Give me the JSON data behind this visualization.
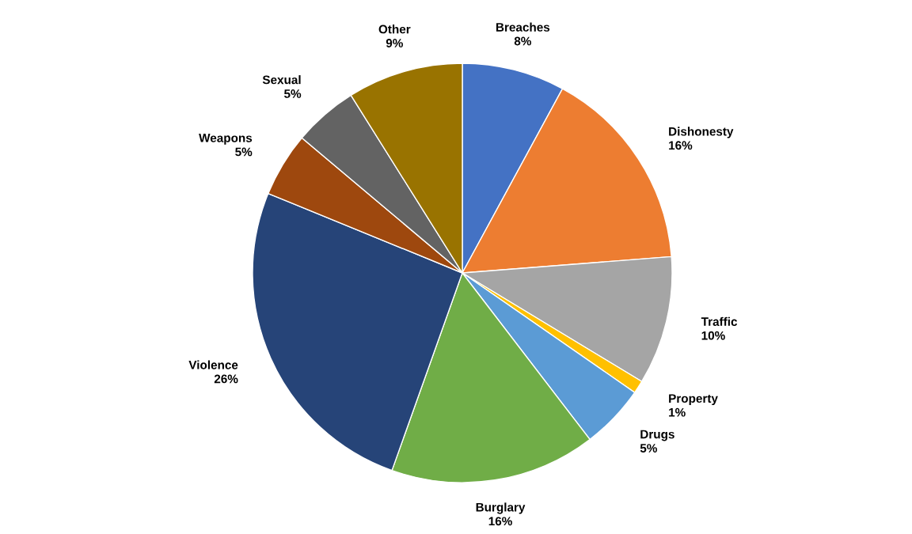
{
  "chart_data": {
    "type": "pie",
    "categories": [
      "Breaches",
      "Dishonesty",
      "Traffic",
      "Property",
      "Drugs",
      "Burglary",
      "Violence",
      "Weapons",
      "Sexual",
      "Other"
    ],
    "values": [
      8,
      16,
      10,
      1,
      5,
      16,
      26,
      5,
      5,
      9
    ],
    "value_labels": [
      "8%",
      "16%",
      "10%",
      "1%",
      "5%",
      "16%",
      "26%",
      "5%",
      "5%",
      "9%"
    ],
    "colors": [
      "#4472c4",
      "#ed7d31",
      "#a5a5a5",
      "#ffc000",
      "#5b9bd5",
      "#70ad47",
      "#264478",
      "#9e480e",
      "#636363",
      "#997300"
    ],
    "legend": false
  }
}
